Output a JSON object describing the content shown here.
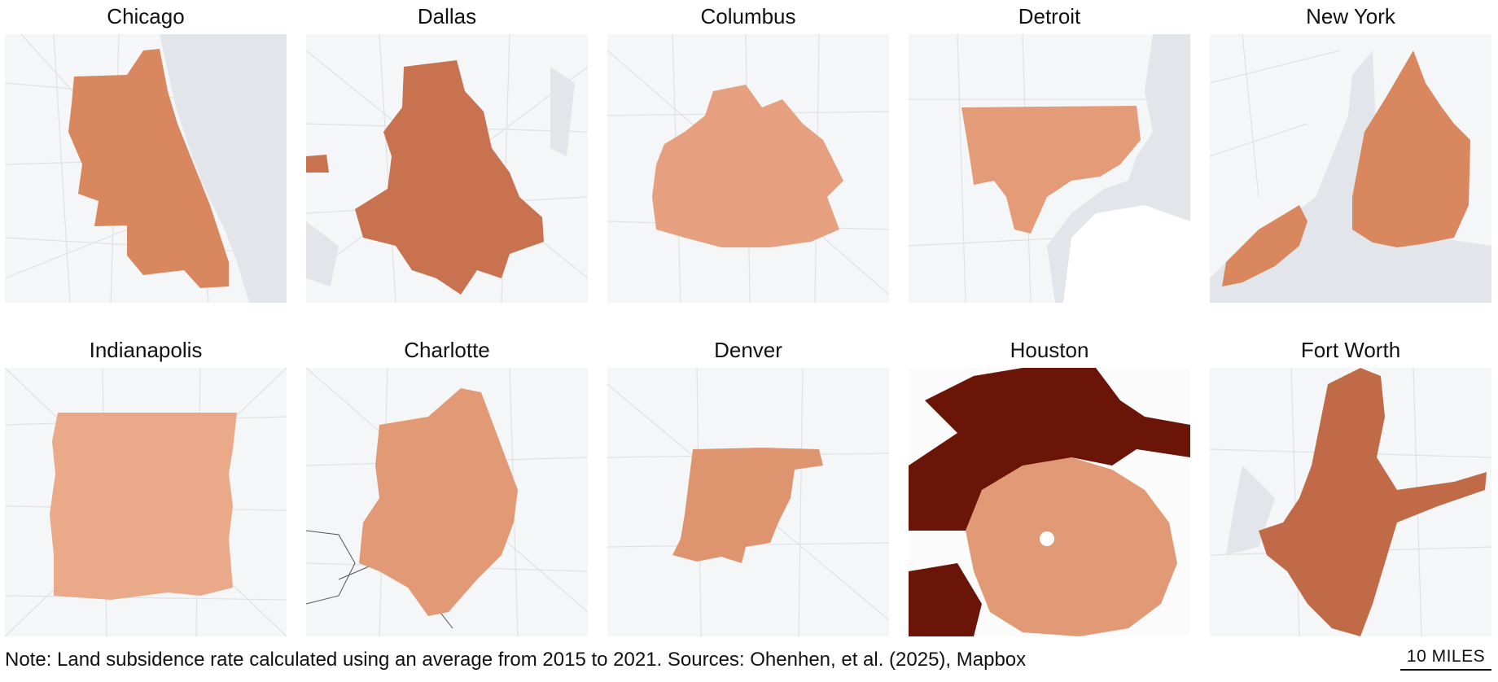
{
  "cities": [
    {
      "name": "Chicago",
      "fill": "#d9875e",
      "water_side": "right"
    },
    {
      "name": "Dallas",
      "fill": "#c97250",
      "water_side": "none"
    },
    {
      "name": "Columbus",
      "fill": "#e6a07f",
      "water_side": "none"
    },
    {
      "name": "Detroit",
      "fill": "#e39b78",
      "water_side": "bottom-right"
    },
    {
      "name": "New York",
      "fill": "#d9875e",
      "water_side": "bottom"
    },
    {
      "name": "Indianapolis",
      "fill": "#eaa988",
      "water_side": "none"
    },
    {
      "name": "Charlotte",
      "fill": "#e29a76",
      "water_side": "none"
    },
    {
      "name": "Denver",
      "fill": "#df9470",
      "water_side": "none"
    },
    {
      "name": "Houston",
      "fill": "#e29a76",
      "water_side": "none",
      "accent": "#6b1408"
    },
    {
      "name": "Fort Worth",
      "fill": "#c06a47",
      "water_side": "none"
    }
  ],
  "note": "Note: Land subsidence rate calculated using an average from 2015 to 2021. Sources: Ohenhen, et al. (2025), Mapbox",
  "scale": {
    "label": "10 MILES"
  },
  "colors": {
    "map_bg": "#f5f6f7",
    "water": "#e2e5ea",
    "road": "#dfe1e4"
  }
}
